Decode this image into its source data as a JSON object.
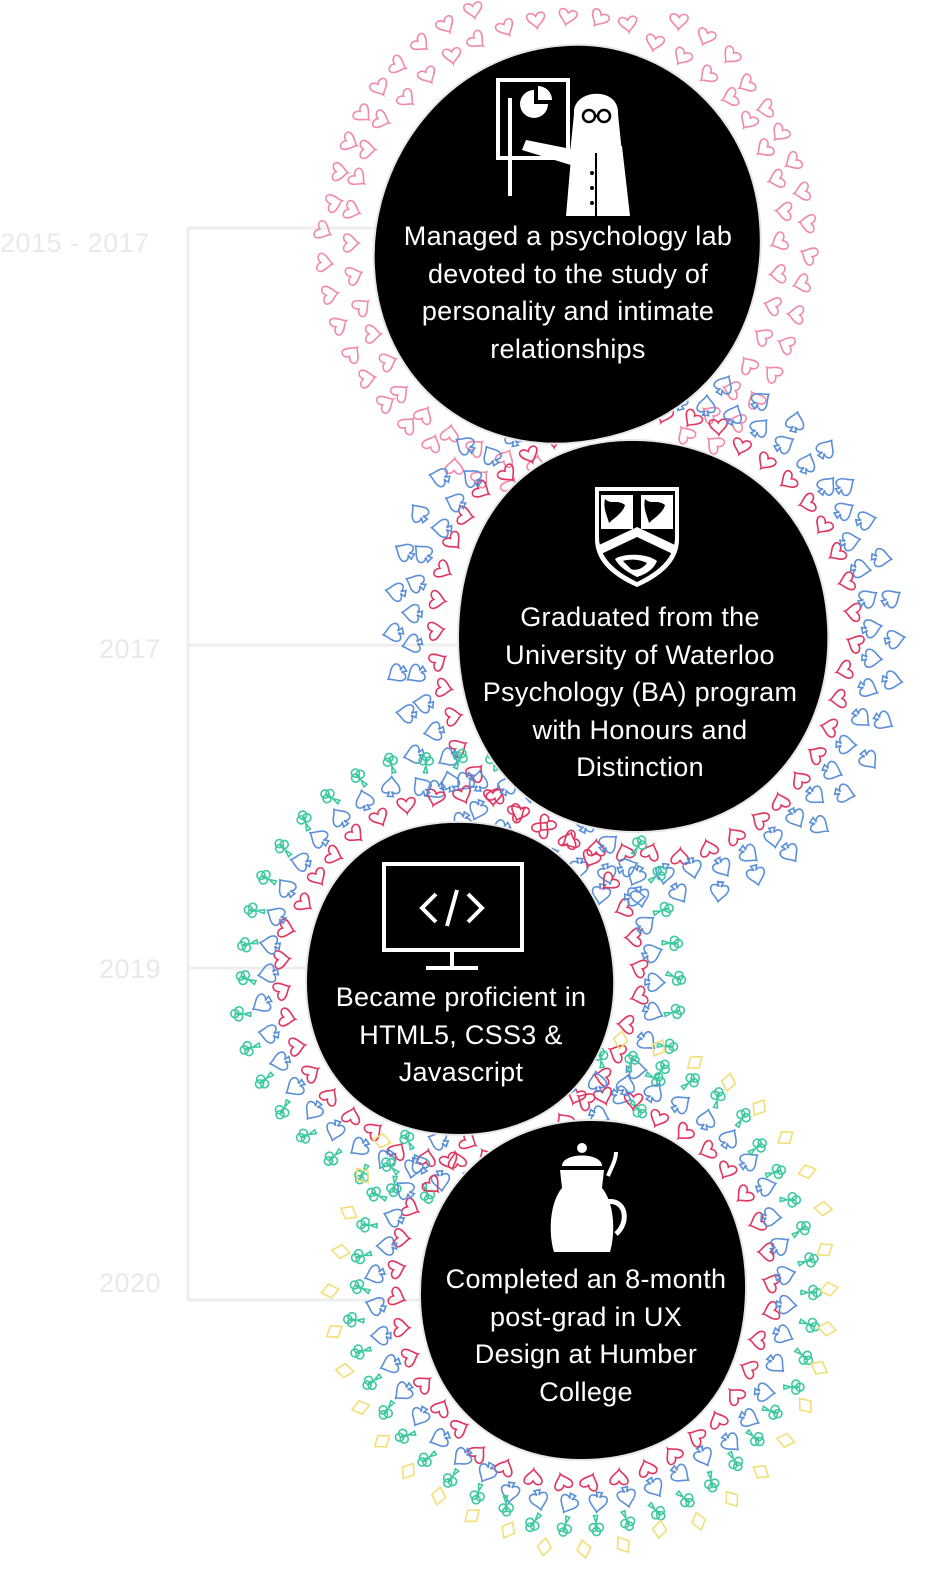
{
  "timeline": {
    "years": [
      "2015 - 2017",
      "2017",
      "2019",
      "2020"
    ],
    "milestones": [
      {
        "text": "Managed a psychology lab devoted to the study of personality and intimate relationships",
        "icon": "researcher-presenting-icon"
      },
      {
        "text": "Graduated from the University of Waterloo Psychology (BA) program with Honours and Distinction",
        "icon": "university-crest-icon"
      },
      {
        "text": "Became proficient in HTML5, CSS3 & Javascript",
        "icon": "code-monitor-icon"
      },
      {
        "text": "Completed an 8-month post-grad in UX Design at Humber College",
        "icon": "kettle-icon"
      }
    ]
  },
  "colors": {
    "background": "#ffffff",
    "blob": "#000000",
    "timeline_line": "#eeeeee",
    "year_text": "#e9e9e9",
    "heart_light": "#f08aa8",
    "heart_dark": "#e0365f",
    "spade": "#5b8fd8",
    "club": "#3ec9a0",
    "diamond": "#f1df78"
  }
}
